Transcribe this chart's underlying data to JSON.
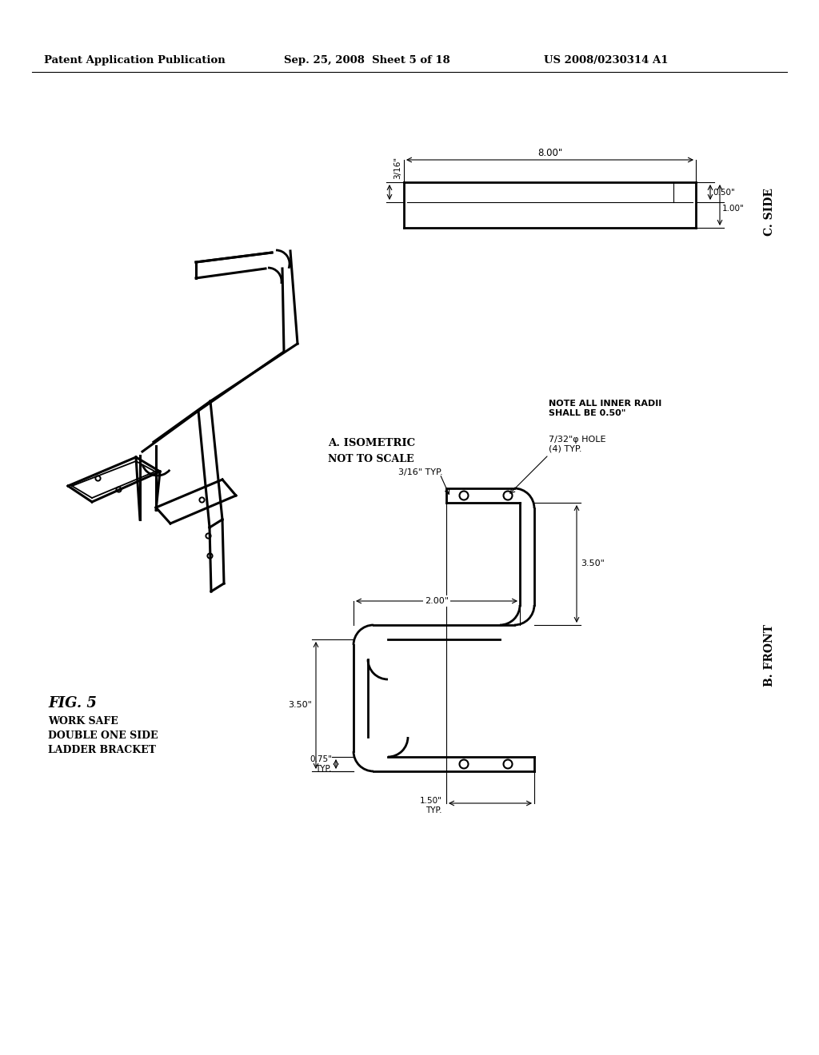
{
  "bg_color": "#ffffff",
  "header_left": "Patent Application Publication",
  "header_mid": "Sep. 25, 2008  Sheet 5 of 18",
  "header_right": "US 2008/0230314 A1",
  "fig_label": "FIG. 5",
  "fig_subtitle1": "WORK SAFE",
  "fig_subtitle2": "DOUBLE ONE SIDE",
  "fig_subtitle3": "LADDER BRACKET",
  "view_a_label": "A. ISOMETRIC",
  "view_a_sublabel": "NOT TO SCALE",
  "view_b_label": "B. FRONT",
  "view_c_label": "C. SIDE",
  "note_radii": "NOTE ALL INNER RADII\nSHALL BE 0.50\"",
  "dim_316": "3/16\"",
  "dim_800": "8.00\"",
  "dim_050": "0.50\"",
  "dim_100": "1.00\"",
  "dim_350a": "3.50\"",
  "dim_350b": "3.50\"",
  "dim_200": "2.00\"",
  "dim_150typ": "1.50\"\nTYP.",
  "dim_075typ": "0.75\"\nTYP.",
  "dim_316typ": "3/16\" TYP.",
  "dim_hole": "7/32\"φ HOLE\n(4) TYP."
}
